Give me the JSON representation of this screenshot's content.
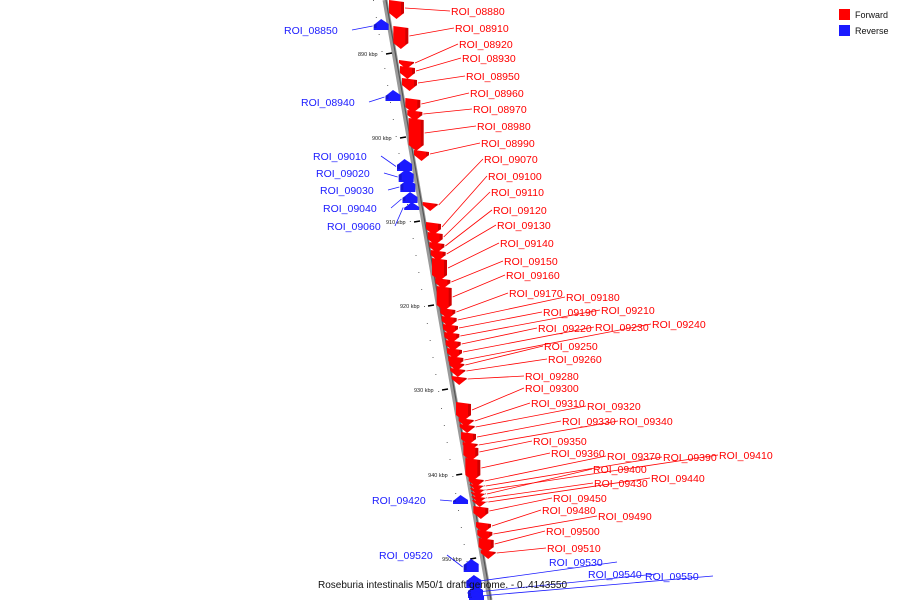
{
  "legend": {
    "forward_label": "Forward",
    "reverse_label": "Reverse",
    "forward_color": "#ff0000",
    "reverse_color": "#1a1aff"
  },
  "caption": "Roseburia intestinalis M50/1 draft genome. - 0..4143550",
  "tick_labels": [
    "890 kbp",
    "900 kbp",
    "910 kbp",
    "920 kbp",
    "930 kbp",
    "940 kbp",
    "950 kbp"
  ],
  "features": [
    {
      "name": "ROI_08880",
      "strand": "forward"
    },
    {
      "name": "ROI_08850",
      "strand": "reverse"
    },
    {
      "name": "ROI_08910",
      "strand": "forward"
    },
    {
      "name": "ROI_08920",
      "strand": "forward"
    },
    {
      "name": "ROI_08930",
      "strand": "forward"
    },
    {
      "name": "ROI_08950",
      "strand": "forward"
    },
    {
      "name": "ROI_08940",
      "strand": "reverse"
    },
    {
      "name": "ROI_08960",
      "strand": "forward"
    },
    {
      "name": "ROI_08970",
      "strand": "forward"
    },
    {
      "name": "ROI_08980",
      "strand": "forward"
    },
    {
      "name": "ROI_08990",
      "strand": "forward"
    },
    {
      "name": "ROI_09010",
      "strand": "reverse"
    },
    {
      "name": "ROI_09070",
      "strand": "forward"
    },
    {
      "name": "ROI_09020",
      "strand": "reverse"
    },
    {
      "name": "ROI_09100",
      "strand": "forward"
    },
    {
      "name": "ROI_09030",
      "strand": "reverse"
    },
    {
      "name": "ROI_09110",
      "strand": "forward"
    },
    {
      "name": "ROI_09040",
      "strand": "reverse"
    },
    {
      "name": "ROI_09120",
      "strand": "forward"
    },
    {
      "name": "ROI_09060",
      "strand": "reverse"
    },
    {
      "name": "ROI_09130",
      "strand": "forward"
    },
    {
      "name": "ROI_09140",
      "strand": "forward"
    },
    {
      "name": "ROI_09150",
      "strand": "forward"
    },
    {
      "name": "ROI_09160",
      "strand": "forward"
    },
    {
      "name": "ROI_09170",
      "strand": "forward"
    },
    {
      "name": "ROI_09180",
      "strand": "forward"
    },
    {
      "name": "ROI_09190",
      "strand": "forward"
    },
    {
      "name": "ROI_09210",
      "strand": "forward"
    },
    {
      "name": "ROI_09220",
      "strand": "forward"
    },
    {
      "name": "ROI_09230",
      "strand": "forward"
    },
    {
      "name": "ROI_09240",
      "strand": "forward"
    },
    {
      "name": "ROI_09250",
      "strand": "forward"
    },
    {
      "name": "ROI_09260",
      "strand": "forward"
    },
    {
      "name": "ROI_09280",
      "strand": "forward"
    },
    {
      "name": "ROI_09300",
      "strand": "forward"
    },
    {
      "name": "ROI_09310",
      "strand": "forward"
    },
    {
      "name": "ROI_09320",
      "strand": "forward"
    },
    {
      "name": "ROI_09330",
      "strand": "forward"
    },
    {
      "name": "ROI_09340",
      "strand": "forward"
    },
    {
      "name": "ROI_09350",
      "strand": "forward"
    },
    {
      "name": "ROI_09360",
      "strand": "forward"
    },
    {
      "name": "ROI_09370",
      "strand": "forward"
    },
    {
      "name": "ROI_09390",
      "strand": "forward"
    },
    {
      "name": "ROI_09410",
      "strand": "forward"
    },
    {
      "name": "ROI_09400",
      "strand": "forward"
    },
    {
      "name": "ROI_09430",
      "strand": "forward"
    },
    {
      "name": "ROI_09440",
      "strand": "forward"
    },
    {
      "name": "ROI_09450",
      "strand": "forward"
    },
    {
      "name": "ROI_09420",
      "strand": "reverse"
    },
    {
      "name": "ROI_09480",
      "strand": "forward"
    },
    {
      "name": "ROI_09490",
      "strand": "forward"
    },
    {
      "name": "ROI_09500",
      "strand": "forward"
    },
    {
      "name": "ROI_09510",
      "strand": "forward"
    },
    {
      "name": "ROI_09520",
      "strand": "reverse"
    },
    {
      "name": "ROI_09530",
      "strand": "reverse"
    },
    {
      "name": "ROI_09540",
      "strand": "reverse"
    },
    {
      "name": "ROI_09550",
      "strand": "reverse"
    }
  ]
}
